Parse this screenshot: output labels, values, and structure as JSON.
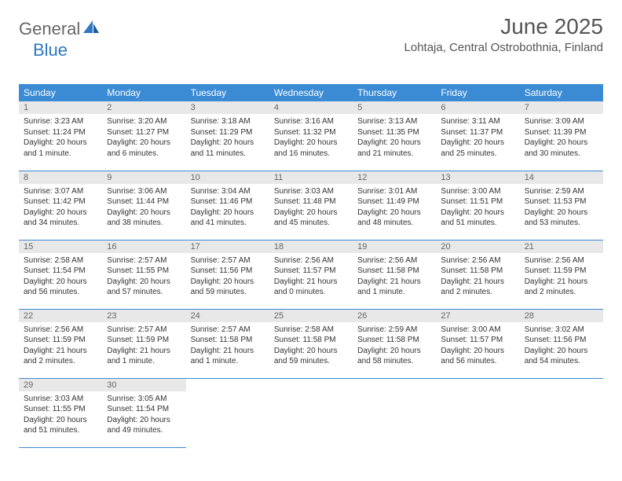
{
  "logo": {
    "text1": "General",
    "text2": "Blue"
  },
  "title": "June 2025",
  "location": "Lohtaja, Central Ostrobothnia, Finland",
  "colors": {
    "header_bg": "#3b8bd4",
    "header_text": "#ffffff",
    "daynum_bg": "#e8e8e8",
    "daynum_text": "#666666",
    "body_text": "#333333",
    "rule": "#3b8bd4",
    "logo_gray": "#666666",
    "logo_blue": "#2e78c2",
    "page_bg": "#ffffff"
  },
  "day_headers": [
    "Sunday",
    "Monday",
    "Tuesday",
    "Wednesday",
    "Thursday",
    "Friday",
    "Saturday"
  ],
  "weeks": [
    [
      {
        "n": "1",
        "sunrise": "Sunrise: 3:23 AM",
        "sunset": "Sunset: 11:24 PM",
        "daylight": "Daylight: 20 hours and 1 minute."
      },
      {
        "n": "2",
        "sunrise": "Sunrise: 3:20 AM",
        "sunset": "Sunset: 11:27 PM",
        "daylight": "Daylight: 20 hours and 6 minutes."
      },
      {
        "n": "3",
        "sunrise": "Sunrise: 3:18 AM",
        "sunset": "Sunset: 11:29 PM",
        "daylight": "Daylight: 20 hours and 11 minutes."
      },
      {
        "n": "4",
        "sunrise": "Sunrise: 3:16 AM",
        "sunset": "Sunset: 11:32 PM",
        "daylight": "Daylight: 20 hours and 16 minutes."
      },
      {
        "n": "5",
        "sunrise": "Sunrise: 3:13 AM",
        "sunset": "Sunset: 11:35 PM",
        "daylight": "Daylight: 20 hours and 21 minutes."
      },
      {
        "n": "6",
        "sunrise": "Sunrise: 3:11 AM",
        "sunset": "Sunset: 11:37 PM",
        "daylight": "Daylight: 20 hours and 25 minutes."
      },
      {
        "n": "7",
        "sunrise": "Sunrise: 3:09 AM",
        "sunset": "Sunset: 11:39 PM",
        "daylight": "Daylight: 20 hours and 30 minutes."
      }
    ],
    [
      {
        "n": "8",
        "sunrise": "Sunrise: 3:07 AM",
        "sunset": "Sunset: 11:42 PM",
        "daylight": "Daylight: 20 hours and 34 minutes."
      },
      {
        "n": "9",
        "sunrise": "Sunrise: 3:06 AM",
        "sunset": "Sunset: 11:44 PM",
        "daylight": "Daylight: 20 hours and 38 minutes."
      },
      {
        "n": "10",
        "sunrise": "Sunrise: 3:04 AM",
        "sunset": "Sunset: 11:46 PM",
        "daylight": "Daylight: 20 hours and 41 minutes."
      },
      {
        "n": "11",
        "sunrise": "Sunrise: 3:03 AM",
        "sunset": "Sunset: 11:48 PM",
        "daylight": "Daylight: 20 hours and 45 minutes."
      },
      {
        "n": "12",
        "sunrise": "Sunrise: 3:01 AM",
        "sunset": "Sunset: 11:49 PM",
        "daylight": "Daylight: 20 hours and 48 minutes."
      },
      {
        "n": "13",
        "sunrise": "Sunrise: 3:00 AM",
        "sunset": "Sunset: 11:51 PM",
        "daylight": "Daylight: 20 hours and 51 minutes."
      },
      {
        "n": "14",
        "sunrise": "Sunrise: 2:59 AM",
        "sunset": "Sunset: 11:53 PM",
        "daylight": "Daylight: 20 hours and 53 minutes."
      }
    ],
    [
      {
        "n": "15",
        "sunrise": "Sunrise: 2:58 AM",
        "sunset": "Sunset: 11:54 PM",
        "daylight": "Daylight: 20 hours and 56 minutes."
      },
      {
        "n": "16",
        "sunrise": "Sunrise: 2:57 AM",
        "sunset": "Sunset: 11:55 PM",
        "daylight": "Daylight: 20 hours and 57 minutes."
      },
      {
        "n": "17",
        "sunrise": "Sunrise: 2:57 AM",
        "sunset": "Sunset: 11:56 PM",
        "daylight": "Daylight: 20 hours and 59 minutes."
      },
      {
        "n": "18",
        "sunrise": "Sunrise: 2:56 AM",
        "sunset": "Sunset: 11:57 PM",
        "daylight": "Daylight: 21 hours and 0 minutes."
      },
      {
        "n": "19",
        "sunrise": "Sunrise: 2:56 AM",
        "sunset": "Sunset: 11:58 PM",
        "daylight": "Daylight: 21 hours and 1 minute."
      },
      {
        "n": "20",
        "sunrise": "Sunrise: 2:56 AM",
        "sunset": "Sunset: 11:58 PM",
        "daylight": "Daylight: 21 hours and 2 minutes."
      },
      {
        "n": "21",
        "sunrise": "Sunrise: 2:56 AM",
        "sunset": "Sunset: 11:59 PM",
        "daylight": "Daylight: 21 hours and 2 minutes."
      }
    ],
    [
      {
        "n": "22",
        "sunrise": "Sunrise: 2:56 AM",
        "sunset": "Sunset: 11:59 PM",
        "daylight": "Daylight: 21 hours and 2 minutes."
      },
      {
        "n": "23",
        "sunrise": "Sunrise: 2:57 AM",
        "sunset": "Sunset: 11:59 PM",
        "daylight": "Daylight: 21 hours and 1 minute."
      },
      {
        "n": "24",
        "sunrise": "Sunrise: 2:57 AM",
        "sunset": "Sunset: 11:58 PM",
        "daylight": "Daylight: 21 hours and 1 minute."
      },
      {
        "n": "25",
        "sunrise": "Sunrise: 2:58 AM",
        "sunset": "Sunset: 11:58 PM",
        "daylight": "Daylight: 20 hours and 59 minutes."
      },
      {
        "n": "26",
        "sunrise": "Sunrise: 2:59 AM",
        "sunset": "Sunset: 11:58 PM",
        "daylight": "Daylight: 20 hours and 58 minutes."
      },
      {
        "n": "27",
        "sunrise": "Sunrise: 3:00 AM",
        "sunset": "Sunset: 11:57 PM",
        "daylight": "Daylight: 20 hours and 56 minutes."
      },
      {
        "n": "28",
        "sunrise": "Sunrise: 3:02 AM",
        "sunset": "Sunset: 11:56 PM",
        "daylight": "Daylight: 20 hours and 54 minutes."
      }
    ],
    [
      {
        "n": "29",
        "sunrise": "Sunrise: 3:03 AM",
        "sunset": "Sunset: 11:55 PM",
        "daylight": "Daylight: 20 hours and 51 minutes."
      },
      {
        "n": "30",
        "sunrise": "Sunrise: 3:05 AM",
        "sunset": "Sunset: 11:54 PM",
        "daylight": "Daylight: 20 hours and 49 minutes."
      },
      null,
      null,
      null,
      null,
      null
    ]
  ]
}
